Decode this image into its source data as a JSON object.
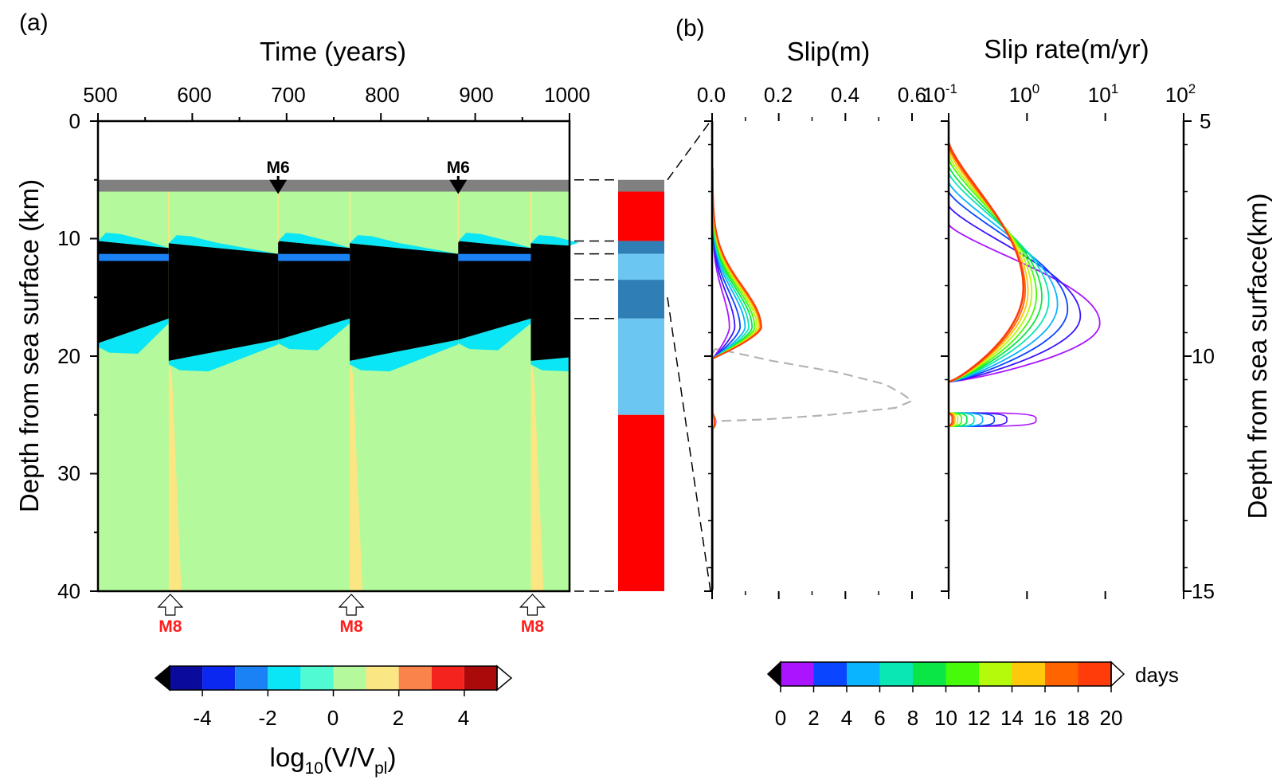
{
  "panel_labels": {
    "a": "(a)",
    "b": "(b)"
  },
  "chart_data": [
    {
      "type": "heatmap",
      "title": "Time (years)",
      "ylabel": "Depth from sea surface (km)",
      "xlim": [
        500,
        1000
      ],
      "ylim": [
        0,
        40
      ],
      "x_ticks": [
        "500",
        "600",
        "700",
        "800",
        "900",
        "1000"
      ],
      "y_ticks": [
        "0",
        "10",
        "20",
        "30",
        "40"
      ],
      "x_tick_values": [
        500,
        600,
        700,
        800,
        900,
        1000
      ],
      "y_tick_values": [
        0,
        10,
        20,
        30,
        40
      ],
      "fault_top_depth": 5,
      "surface_layer_depth": [
        5,
        6
      ],
      "background_level": "0",
      "large_events": [
        {
          "label": "M8",
          "time": 575
        },
        {
          "label": "M8",
          "time": 767
        },
        {
          "label": "M8",
          "time": 959
        }
      ],
      "small_events": [
        {
          "label": "M6",
          "time": 691
        },
        {
          "label": "M6",
          "time": 882
        }
      ],
      "locked_zone_cycles": [
        {
          "t_start": 500,
          "t_end": 575,
          "top_start": 10.2,
          "top_end": 10.8,
          "bottom_start": 18.9,
          "bottom_end": 16.8
        },
        {
          "t_start": 575,
          "t_end": 691,
          "top_start": 10.4,
          "top_end": 11.3,
          "bottom_start": 20.4,
          "bottom_end": 18.6
        },
        {
          "t_start": 691,
          "t_end": 767,
          "top_start": 10.2,
          "top_end": 10.8,
          "bottom_start": 18.6,
          "bottom_end": 16.8
        },
        {
          "t_start": 767,
          "t_end": 882,
          "top_start": 10.4,
          "top_end": 11.3,
          "bottom_start": 20.4,
          "bottom_end": 18.6
        },
        {
          "t_start": 882,
          "t_end": 959,
          "top_start": 10.2,
          "top_end": 10.8,
          "bottom_start": 18.6,
          "bottom_end": 16.8
        },
        {
          "t_start": 959,
          "t_end": 1000,
          "top_start": 10.4,
          "top_end": 10.6,
          "bottom_start": 20.4,
          "bottom_end": 20.1
        }
      ],
      "legend_labels": [
        "-4",
        "-2",
        "0",
        "2",
        "4"
      ],
      "legend_values": [
        -4,
        -2,
        0,
        2,
        4
      ],
      "legend_title_main": "log",
      "legend_title_sub1": "10",
      "legend_title_mid": "(V/V",
      "legend_title_sub2": "pl",
      "legend_title_end": ")",
      "legend_bins": [
        -5,
        -4,
        -3,
        -2,
        -1,
        0,
        1,
        2,
        3,
        4,
        5
      ],
      "legend_colors": [
        "#0a0a9c",
        "#0a28f0",
        "#1a82f5",
        "#0ae6f5",
        "#50fad2",
        "#b4fa9c",
        "#fae682",
        "#fa824b",
        "#f5231e",
        "#aa0a0a"
      ],
      "legend_min_color": "#000000",
      "legend_max_color": "#ffffff"
    },
    {
      "type": "bar",
      "description_role": "friction-property column",
      "ylim": [
        0,
        40
      ],
      "segments": [
        {
          "from": 5,
          "to": 6,
          "color": "#808080"
        },
        {
          "from": 6,
          "to": 10.2,
          "color": "#ff0000"
        },
        {
          "from": 10.2,
          "to": 11.3,
          "color": "#2f7fb6"
        },
        {
          "from": 11.3,
          "to": 13.5,
          "color": "#6cc6f2"
        },
        {
          "from": 13.5,
          "to": 16.8,
          "color": "#2f7fb6"
        },
        {
          "from": 16.8,
          "to": 25,
          "color": "#6cc6f2"
        },
        {
          "from": 25,
          "to": 40,
          "color": "#ff0000"
        }
      ],
      "guide_depths": [
        5,
        10.2,
        11.3,
        13.5,
        16.8,
        40
      ]
    },
    {
      "type": "line",
      "title": "Slip(m)",
      "xlim": [
        0,
        0.6
      ],
      "ylim": [
        5,
        15
      ],
      "x_ticks": [
        "0.0",
        "0.2",
        "0.4",
        "0.6"
      ],
      "x_tick_values": [
        0,
        0.2,
        0.4,
        0.6
      ],
      "times_days": [
        0,
        2,
        4,
        6,
        8,
        10,
        12,
        14,
        16,
        18,
        20
      ],
      "peak_slip_m": [
        0.05,
        0.066,
        0.082,
        0.097,
        0.108,
        0.118,
        0.126,
        0.133,
        0.139,
        0.143,
        0.146
      ],
      "peak_depth_km": 9.4,
      "reference_curve": {
        "style": "dashed",
        "color": "#b4b4b4",
        "x": [
          0,
          0.01,
          0.05,
          0.18,
          0.38,
          0.52,
          0.57,
          0.6,
          0.55,
          0.35,
          0.15,
          0.02
        ],
        "y": [
          9.95,
          9.85,
          9.9,
          10.1,
          10.35,
          10.6,
          10.8,
          10.95,
          11.1,
          11.25,
          11.35,
          11.38
        ]
      }
    },
    {
      "type": "line",
      "title": "Slip rate(m/yr)",
      "xscale": "log",
      "xlim": [
        0.1,
        100
      ],
      "ylim": [
        5,
        15
      ],
      "x_tick_base": [
        "10",
        "10",
        "10",
        "10"
      ],
      "x_tick_exp": [
        "-1",
        "0",
        "1",
        "2"
      ],
      "x_tick_values": [
        0.1,
        1,
        10,
        100
      ],
      "y_ticks": [
        "5",
        "10",
        "15"
      ],
      "y_tick_values": [
        5,
        10,
        15
      ],
      "ylabel": "Depth from sea surface(km)",
      "times_days": [
        0,
        2,
        4,
        6,
        8,
        10,
        12,
        14,
        16,
        18,
        20
      ],
      "peak_rate_m_per_yr": [
        8.5,
        4.8,
        3.3,
        2.45,
        1.9,
        1.55,
        1.32,
        1.15,
        1.03,
        0.95,
        0.9
      ],
      "peak_depth_km": [
        9.3,
        9.15,
        9.0,
        8.9,
        8.8,
        8.75,
        8.7,
        8.65,
        8.62,
        8.6,
        8.55
      ],
      "top_depth_km": [
        7.2,
        6.8,
        6.5,
        6.3,
        6.1,
        5.95,
        5.8,
        5.7,
        5.6,
        5.52,
        5.45
      ],
      "bottom_depth_km": 10.55,
      "secondary_peak_rate": [
        1.3,
        0.55,
        0.38,
        0.27,
        0.21,
        0.17,
        0.145,
        0.13,
        0.12,
        0.115,
        0.11
      ],
      "secondary_depth_km": 11.35
    }
  ],
  "days_colorbar": {
    "labels": [
      "0",
      "2",
      "4",
      "6",
      "8",
      "10",
      "12",
      "14",
      "16",
      "18",
      "20"
    ],
    "values": [
      0,
      2,
      4,
      6,
      8,
      10,
      12,
      14,
      16,
      18,
      20
    ],
    "unit_label": "days",
    "colors": [
      "#aa14ff",
      "#3c14ff",
      "#0a46ff",
      "#0ab4ff",
      "#0ae6b4",
      "#0ae646",
      "#46fa0a",
      "#b4fa0a",
      "#ffc80a",
      "#ff6400",
      "#ff3c0a"
    ]
  }
}
